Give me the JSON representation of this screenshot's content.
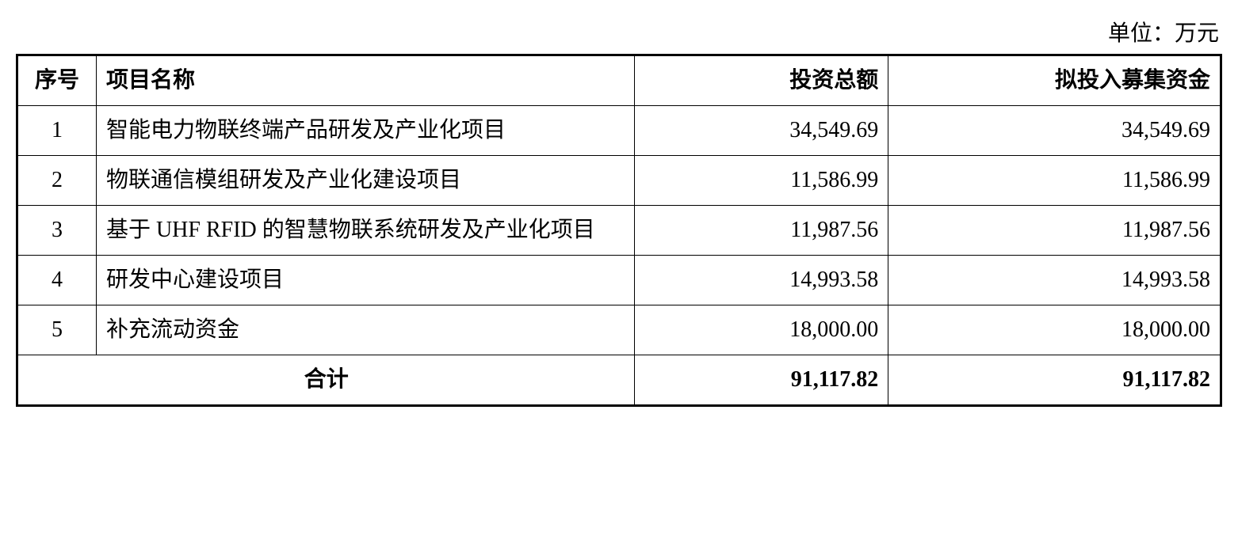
{
  "unit_label": "单位：万元",
  "table": {
    "headers": {
      "seq": "序号",
      "name": "项目名称",
      "invest": "投资总额",
      "raise": "拟投入募集资金"
    },
    "rows": [
      {
        "seq": "1",
        "name": "智能电力物联终端产品研发及产业化项目",
        "invest": "34,549.69",
        "raise": "34,549.69"
      },
      {
        "seq": "2",
        "name": "物联通信模组研发及产业化建设项目",
        "invest": "11,586.99",
        "raise": "11,586.99"
      },
      {
        "seq": "3",
        "name": "基于 UHF RFID 的智慧物联系统研发及产业化项目",
        "invest": "11,987.56",
        "raise": "11,987.56"
      },
      {
        "seq": "4",
        "name": "研发中心建设项目",
        "invest": "14,993.58",
        "raise": "14,993.58"
      },
      {
        "seq": "5",
        "name": "补充流动资金",
        "invest": "18,000.00",
        "raise": "18,000.00"
      }
    ],
    "total": {
      "label": "合计",
      "invest": "91,117.82",
      "raise": "91,117.82"
    },
    "column_widths": {
      "seq": 100,
      "name": 680,
      "invest": 320,
      "raise": 420
    },
    "font_size": 28,
    "border_color": "#000000",
    "outer_border_width": 3,
    "inner_border_width": 1,
    "background_color": "#ffffff",
    "text_color": "#000000"
  }
}
